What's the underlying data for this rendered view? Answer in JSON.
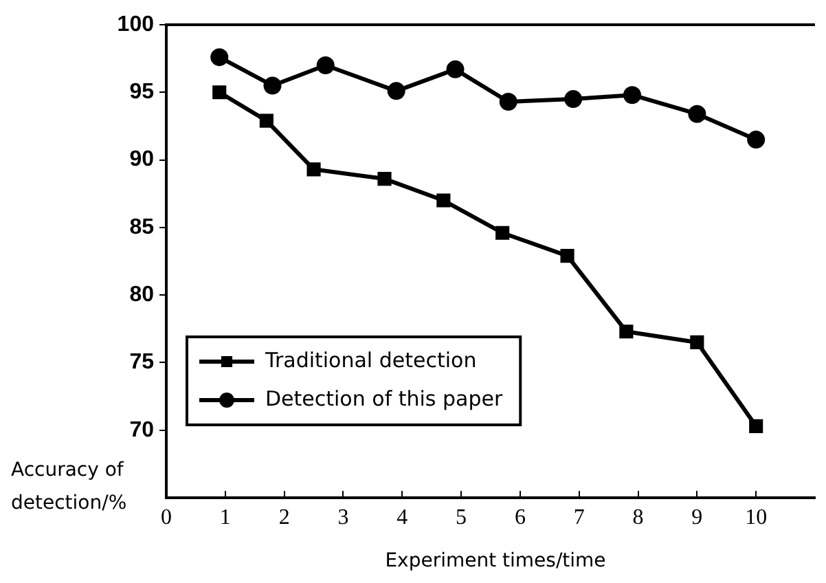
{
  "chart_data": {
    "type": "line",
    "xlabel": "Experiment times/time",
    "ylabel": "Accuracy of detection/%",
    "xlim": [
      0,
      11
    ],
    "xticks": [
      0,
      1,
      2,
      3,
      4,
      5,
      6,
      7,
      8,
      9,
      10
    ],
    "ylim": [
      65,
      100
    ],
    "yticks": [
      70,
      75,
      80,
      85,
      90,
      95,
      100
    ],
    "grid": false,
    "legend": "bottom left",
    "line_style": "solid",
    "series": [
      {
        "name": "Traditional detection",
        "color": "#000000",
        "marker": "square",
        "x": [
          0.9,
          1.7,
          2.5,
          3.7,
          4.7,
          5.7,
          6.8,
          7.8,
          9.0,
          10.0
        ],
        "values": [
          95.0,
          92.9,
          89.3,
          88.6,
          87.0,
          84.6,
          82.9,
          77.3,
          76.5,
          70.3
        ]
      },
      {
        "name": "Detection of this paper",
        "color": "#000000",
        "marker": "circle",
        "x": [
          0.9,
          1.8,
          2.7,
          3.9,
          4.9,
          5.8,
          6.9,
          7.9,
          9.0,
          10.0
        ],
        "values": [
          97.6,
          95.5,
          97.0,
          95.1,
          96.7,
          94.3,
          94.5,
          94.8,
          93.4,
          91.5
        ]
      }
    ]
  }
}
